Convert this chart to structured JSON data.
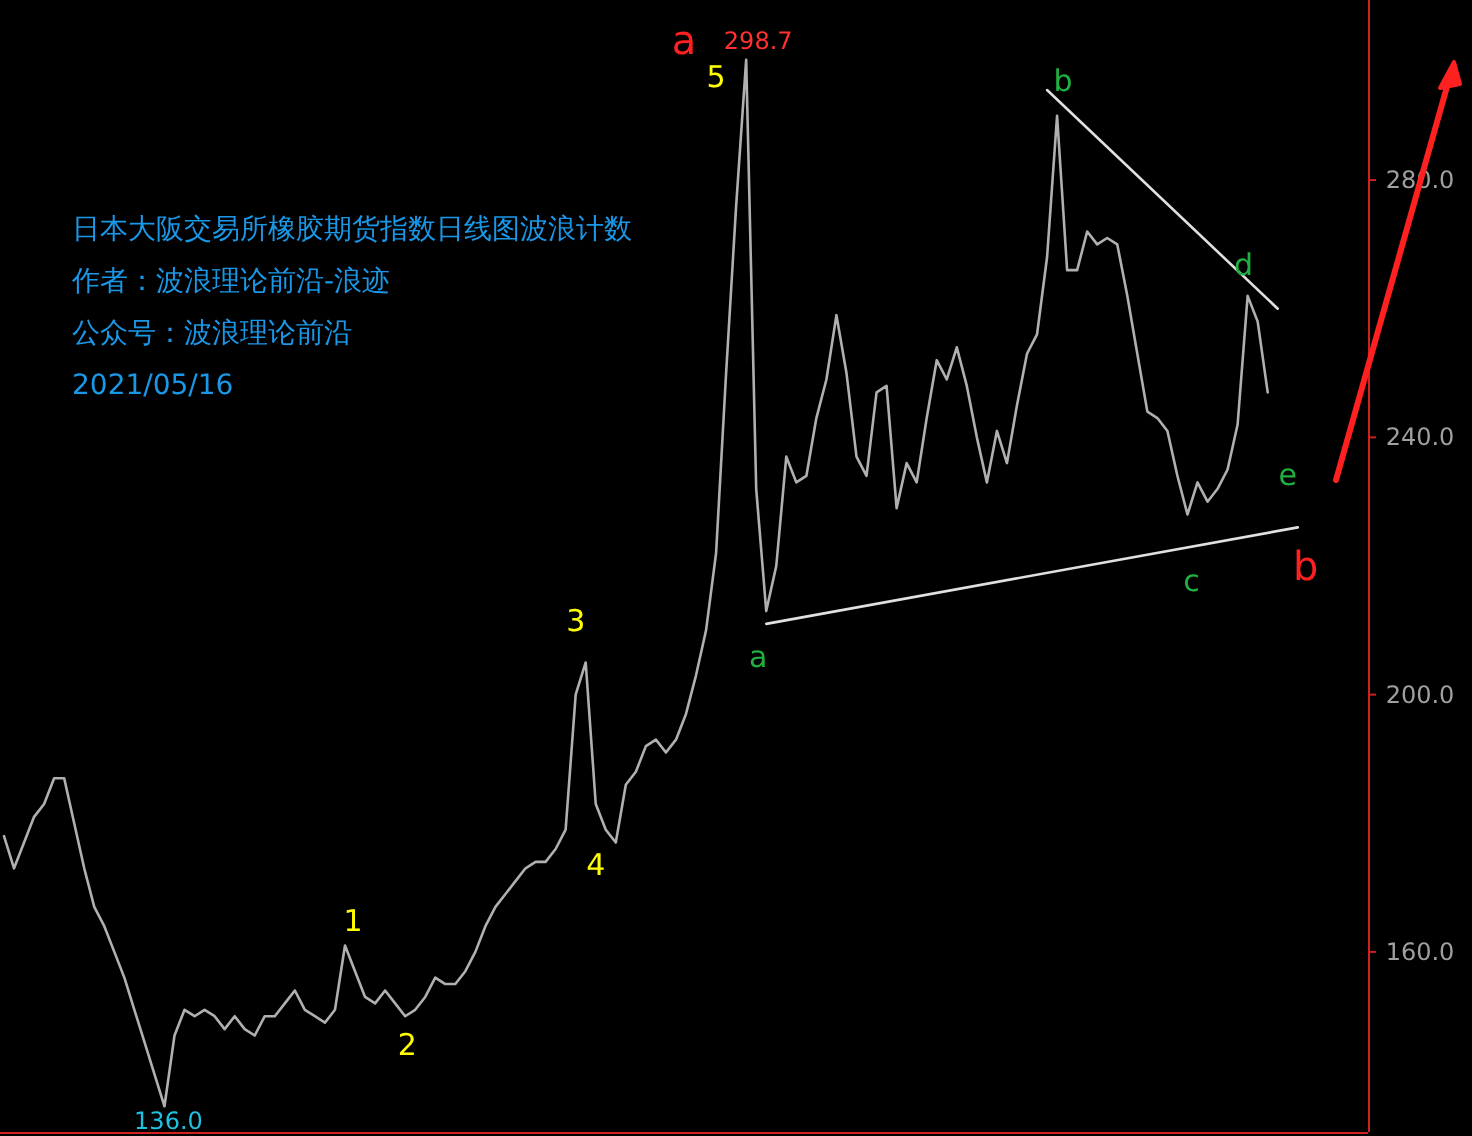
{
  "chart_data": {
    "type": "line",
    "title": "日本大阪交易所橡胶期货指数日线图波浪计数",
    "categories": [
      null,
      null,
      null,
      null,
      null,
      null,
      null,
      null,
      null,
      null,
      null,
      null,
      null,
      null,
      null,
      null,
      null,
      null,
      null,
      null,
      null,
      null,
      null,
      null,
      null,
      null,
      null,
      null,
      null,
      null,
      null,
      null,
      null,
      null,
      null,
      null,
      null,
      null,
      null,
      null,
      null,
      null,
      null,
      null,
      null,
      null,
      null,
      null,
      null,
      null,
      null,
      null,
      null,
      null,
      null,
      null,
      null,
      null,
      null,
      null,
      null,
      null,
      null,
      null,
      null,
      null,
      null,
      null,
      null,
      null,
      null,
      null,
      null,
      null,
      null,
      null,
      null,
      null,
      null,
      null,
      null,
      null,
      null,
      null,
      null,
      null,
      null,
      null,
      null,
      null,
      null,
      null,
      null,
      null,
      null,
      null,
      null,
      null,
      null,
      null,
      null,
      null,
      null,
      null,
      null,
      null,
      null,
      null,
      null,
      null,
      null,
      null,
      null,
      null,
      null,
      null,
      null,
      null,
      null,
      null,
      null,
      null,
      null,
      null,
      null,
      null,
      null,
      null,
      null,
      null,
      null,
      null,
      null,
      null,
      null,
      null,
      null
    ],
    "series": [
      {
        "color": "#b0b0b0",
        "values": [
          178,
          173,
          177,
          181,
          183,
          187,
          187,
          180,
          173,
          167,
          164,
          160,
          156,
          151,
          146,
          141,
          136,
          147,
          151,
          150,
          151,
          150,
          148,
          150,
          148,
          147,
          150,
          150,
          152,
          154,
          151,
          150,
          149,
          151,
          161,
          157,
          153,
          152,
          154,
          152,
          150,
          151,
          153,
          156,
          155,
          155,
          157,
          160,
          164,
          167,
          169,
          171,
          173,
          174,
          174,
          176,
          179,
          200,
          205,
          183,
          179,
          177,
          186,
          188,
          192,
          193,
          191,
          193,
          197,
          203,
          210,
          222,
          250,
          276,
          298.7,
          232,
          213,
          220,
          237,
          233,
          234,
          243,
          249,
          259,
          250,
          237,
          234,
          247,
          248,
          229,
          236,
          233,
          243,
          252,
          249,
          254,
          248,
          240,
          233,
          241,
          236,
          245,
          253,
          256,
          268,
          290,
          266,
          266,
          272,
          270,
          271,
          270,
          262,
          253,
          244,
          243,
          241,
          234,
          228,
          233,
          230,
          232,
          235,
          242,
          262,
          258,
          247,
          null,
          null,
          null,
          null,
          null,
          null,
          null,
          null,
          null,
          null
        ]
      },
      {
        "color": "#e0e0e0",
        "values": [
          null,
          null,
          null,
          null,
          null,
          null,
          null,
          null,
          null,
          null,
          null,
          null,
          null,
          null,
          null,
          null,
          null,
          null,
          null,
          null,
          null,
          null,
          null,
          null,
          null,
          null,
          null,
          null,
          null,
          null,
          null,
          null,
          null,
          null,
          null,
          null,
          null,
          null,
          null,
          null,
          null,
          null,
          null,
          null,
          null,
          null,
          null,
          null,
          null,
          null,
          null,
          null,
          null,
          null,
          null,
          null,
          null,
          null,
          null,
          null,
          null,
          null,
          null,
          null,
          null,
          null,
          null,
          null,
          null,
          null,
          null,
          null,
          null,
          null,
          null,
          null,
          211,
          null,
          null,
          null,
          null,
          null,
          null,
          null,
          null,
          null,
          null,
          null,
          null,
          null,
          null,
          null,
          null,
          null,
          null,
          null,
          null,
          null,
          null,
          null,
          null,
          null,
          null,
          null,
          null,
          null,
          null,
          null,
          null,
          null,
          null,
          null,
          null,
          null,
          null,
          null,
          null,
          null,
          null,
          null,
          null,
          null,
          null,
          null,
          null,
          null,
          null,
          null,
          null,
          226,
          null,
          null,
          null,
          null,
          null,
          null,
          null
        ]
      },
      {
        "color": "#e0e0e0",
        "values": [
          null,
          null,
          null,
          null,
          null,
          null,
          null,
          null,
          null,
          null,
          null,
          null,
          null,
          null,
          null,
          null,
          null,
          null,
          null,
          null,
          null,
          null,
          null,
          null,
          null,
          null,
          null,
          null,
          null,
          null,
          null,
          null,
          null,
          null,
          null,
          null,
          null,
          null,
          null,
          null,
          null,
          null,
          null,
          null,
          null,
          null,
          null,
          null,
          null,
          null,
          null,
          null,
          null,
          null,
          null,
          null,
          null,
          null,
          null,
          null,
          null,
          null,
          null,
          null,
          null,
          null,
          null,
          null,
          null,
          null,
          null,
          null,
          null,
          null,
          null,
          null,
          null,
          null,
          null,
          null,
          null,
          null,
          null,
          null,
          null,
          null,
          null,
          null,
          null,
          null,
          null,
          null,
          null,
          null,
          null,
          null,
          null,
          null,
          null,
          null,
          null,
          null,
          null,
          null,
          294,
          null,
          null,
          null,
          null,
          null,
          null,
          null,
          null,
          null,
          null,
          null,
          null,
          null,
          null,
          null,
          null,
          null,
          null,
          null,
          null,
          null,
          null,
          260,
          null,
          null,
          null,
          null,
          null,
          null,
          null,
          null,
          null
        ]
      }
    ],
    "ylim": [
      132,
      308
    ],
    "yticks": [
      {
        "value": 160,
        "label": "160.0"
      },
      {
        "value": 200,
        "label": "200.0"
      },
      {
        "value": 240,
        "label": "240.0"
      },
      {
        "value": 280,
        "label": "280.0"
      }
    ],
    "tick_labels": "y",
    "annotations": [
      "作者：波浪理论前沿-浪迹",
      "公众号：波浪理论前沿",
      "2021/05/16",
      "a",
      "298.7",
      "5",
      "b",
      {
        "text": "d",
        "y": 267
      },
      "e",
      "c",
      "a",
      "b",
      "3",
      "4",
      "1",
      "2",
      "136.0"
    ]
  }
}
